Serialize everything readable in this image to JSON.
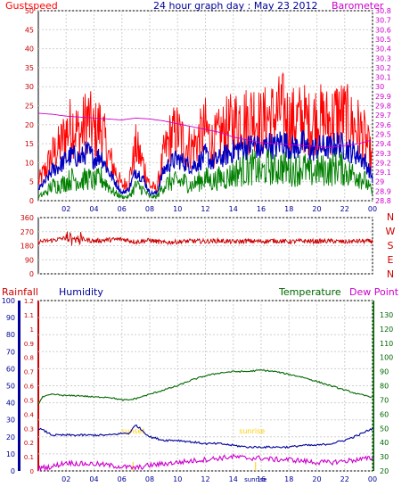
{
  "chart_data": [
    {
      "type": "line",
      "title": "24 hour graph day : May 23 2012",
      "left_axis_label": "Gustspeed",
      "right_axis_label": "Barometer",
      "ylim_left": [
        0,
        50
      ],
      "yticks_left": [
        "0",
        "5",
        "10",
        "15",
        "20",
        "25",
        "30",
        "35",
        "40",
        "45",
        "50"
      ],
      "ylim_right": [
        28.8,
        30.8
      ],
      "yticks_right": [
        "28.8",
        "28.9",
        "29",
        "29.1",
        "29.2",
        "29.3",
        "29.4",
        "29.5",
        "29.6",
        "29.7",
        "29.8",
        "29.9",
        "30",
        "30.1",
        "30.2",
        "30.3",
        "30.4",
        "30.5",
        "30.6",
        "30.7",
        "30.8"
      ],
      "xlim": [
        0,
        24
      ],
      "xticks": [
        "02",
        "04",
        "06",
        "08",
        "10",
        "12",
        "14",
        "16",
        "18",
        "20",
        "22",
        "00"
      ],
      "grid": true,
      "colors": {
        "gust": "#ff0000",
        "avg": "#0000c0",
        "low": "#008000",
        "baro": "#cc00cc"
      },
      "series": [
        {
          "key": "gust",
          "x": [
            0,
            0.5,
            1,
            1.5,
            2,
            2.5,
            3,
            3.5,
            4,
            4.5,
            5,
            5.5,
            6,
            6.5,
            7,
            7.5,
            8,
            8.5,
            9,
            9.5,
            10,
            10.5,
            11,
            11.5,
            12,
            12.5,
            13,
            13.5,
            14,
            14.5,
            15,
            15.5,
            16,
            16.5,
            17,
            17.5,
            18,
            18.5,
            19,
            19.5,
            20,
            20.5,
            21,
            21.5,
            22,
            22.5,
            23,
            23.5,
            24
          ],
          "y": [
            5,
            8,
            12,
            14,
            18,
            20,
            17,
            22,
            18,
            20,
            12,
            8,
            4,
            5,
            14,
            10,
            4,
            3,
            12,
            17,
            18,
            15,
            14,
            16,
            19,
            15,
            17,
            19,
            20,
            22,
            21,
            23,
            20,
            22,
            22,
            24,
            21,
            21,
            22,
            20,
            22,
            21,
            21,
            23,
            22,
            20,
            19,
            16,
            10
          ]
        },
        {
          "key": "avg",
          "x": [
            0,
            0.5,
            1,
            1.5,
            2,
            2.5,
            3,
            3.5,
            4,
            4.5,
            5,
            5.5,
            6,
            6.5,
            7,
            7.5,
            8,
            8.5,
            9,
            9.5,
            10,
            10.5,
            11,
            11.5,
            12,
            12.5,
            13,
            13.5,
            14,
            14.5,
            15,
            15.5,
            16,
            16.5,
            17,
            17.5,
            18,
            18.5,
            19,
            19.5,
            20,
            20.5,
            21,
            21.5,
            22,
            22.5,
            23,
            23.5,
            24
          ],
          "y": [
            3,
            5,
            8,
            9,
            11,
            12,
            11,
            13,
            11,
            12,
            8,
            5,
            2,
            3,
            8,
            6,
            2,
            2,
            8,
            10,
            11,
            10,
            9,
            10,
            12,
            10,
            11,
            12,
            13,
            14,
            14,
            15,
            13,
            15,
            14,
            16,
            14,
            14,
            15,
            13,
            14,
            14,
            14,
            15,
            14,
            13,
            12,
            10,
            6
          ]
        },
        {
          "key": "low",
          "x": [
            0,
            0.5,
            1,
            1.5,
            2,
            2.5,
            3,
            3.5,
            4,
            4.5,
            5,
            5.5,
            6,
            6.5,
            7,
            7.5,
            8,
            8.5,
            9,
            9.5,
            10,
            10.5,
            11,
            11.5,
            12,
            12.5,
            13,
            13.5,
            14,
            14.5,
            15,
            15.5,
            16,
            16.5,
            17,
            17.5,
            18,
            18.5,
            19,
            19.5,
            20,
            20.5,
            21,
            21.5,
            22,
            22.5,
            23,
            23.5,
            24
          ],
          "y": [
            1,
            2,
            4,
            4,
            5,
            6,
            5,
            6,
            5,
            6,
            4,
            2,
            1,
            1,
            4,
            3,
            1,
            1,
            4,
            5,
            5,
            5,
            4,
            5,
            6,
            5,
            6,
            6,
            7,
            8,
            8,
            9,
            7,
            9,
            8,
            9,
            8,
            8,
            9,
            7,
            8,
            8,
            8,
            9,
            8,
            7,
            7,
            5,
            2
          ]
        },
        {
          "key": "baro",
          "axis": "right",
          "x": [
            0,
            1,
            2,
            3,
            4,
            5,
            6,
            6.5,
            7,
            8,
            9,
            10,
            11,
            12,
            13,
            14,
            15,
            16,
            17,
            18,
            19,
            20,
            21,
            22,
            23,
            24
          ],
          "y": [
            29.72,
            29.71,
            29.69,
            29.68,
            29.67,
            29.66,
            29.65,
            29.66,
            29.67,
            29.66,
            29.64,
            29.61,
            29.58,
            29.55,
            29.52,
            29.47,
            29.44,
            29.41,
            29.4,
            29.39,
            29.38,
            29.37,
            29.36,
            29.38,
            29.4,
            29.44
          ]
        }
      ]
    },
    {
      "type": "line",
      "ylim": [
        0,
        360
      ],
      "yticks": [
        "0",
        "90",
        "180",
        "270",
        "360"
      ],
      "compass_labels": [
        "N",
        "W",
        "S",
        "E",
        "N"
      ],
      "xlim": [
        0,
        24
      ],
      "grid": true,
      "colors": {
        "dir": "#cc0000"
      },
      "series": [
        {
          "key": "dir",
          "x": [
            0,
            1,
            2,
            3,
            4,
            5,
            6,
            7,
            8,
            9,
            10,
            11,
            12,
            13,
            14,
            15,
            16,
            17,
            18,
            19,
            20,
            21,
            22,
            23,
            24
          ],
          "y": [
            205,
            215,
            230,
            225,
            210,
            218,
            222,
            205,
            215,
            200,
            205,
            210,
            208,
            212,
            205,
            210,
            208,
            212,
            206,
            210,
            208,
            210,
            205,
            210,
            208
          ]
        }
      ]
    },
    {
      "type": "line",
      "labels": {
        "rainfall": "Rainfall",
        "humidity": "Humidity",
        "temperature": "Temperature",
        "dewpoint": "Dew Point"
      },
      "ylim_humidity": [
        0,
        100
      ],
      "yticks_humidity": [
        "0",
        "10",
        "20",
        "30",
        "40",
        "50",
        "60",
        "70",
        "80",
        "90",
        "100"
      ],
      "ylim_rain": [
        0,
        1.2
      ],
      "yticks_rain": [
        "0",
        "0.1",
        "0.2",
        "0.3",
        "0.4",
        "0.5",
        "0.6",
        "0.7",
        "0.8",
        "0.9",
        "1",
        "1.1",
        "1.2"
      ],
      "ylim_temp": [
        20,
        140
      ],
      "yticks_temp": [
        "20",
        "30",
        "40",
        "50",
        "60",
        "70",
        "80",
        "90",
        "100",
        "110",
        "120",
        "130"
      ],
      "xlim": [
        0,
        24
      ],
      "xticks": [
        "02",
        "04",
        "06",
        "08",
        "10",
        "12",
        "14",
        "16",
        "18",
        "20",
        "22",
        "00"
      ],
      "annotations": {
        "sunset": "sunset",
        "sunrise": "sunrise",
        "sunrise_axis": "sunrise"
      },
      "grid": true,
      "colors": {
        "rain": "#cc0000",
        "humidity": "#000099",
        "temperature": "#006600",
        "dewpoint": "#cc00cc",
        "sun": "#ffcc00"
      },
      "series": [
        {
          "key": "temperature",
          "axis": "temp",
          "x": [
            0,
            0.3,
            1,
            2,
            3,
            4,
            5,
            6,
            6.5,
            7,
            8,
            9,
            10,
            11,
            12,
            13,
            14,
            15,
            16,
            17,
            18,
            19,
            20,
            21,
            22,
            23,
            24
          ],
          "y": [
            67,
            72,
            74,
            73,
            73,
            72,
            72,
            70,
            70,
            71,
            74,
            77,
            80,
            84,
            87,
            89,
            90,
            90,
            91,
            90,
            88,
            86,
            83,
            80,
            77,
            74,
            72
          ]
        },
        {
          "key": "humidity",
          "axis": "humidity",
          "x": [
            0,
            0.3,
            1,
            2,
            3,
            4,
            5,
            6,
            6.5,
            7,
            8,
            9,
            10,
            11,
            12,
            13,
            14,
            15,
            16,
            17,
            18,
            19,
            20,
            21,
            22,
            23,
            24
          ],
          "y": [
            25,
            24,
            21,
            21,
            21,
            21,
            21,
            22,
            22,
            27,
            20,
            18,
            18,
            17,
            16,
            16,
            15,
            14,
            14,
            14,
            14,
            15,
            15,
            16,
            18,
            21,
            25
          ]
        },
        {
          "key": "dewpoint",
          "axis": "temp",
          "x": [
            0,
            1,
            2,
            3,
            4,
            5,
            6,
            7,
            8,
            9,
            10,
            11,
            12,
            13,
            14,
            15,
            16,
            17,
            18,
            19,
            20,
            21,
            22,
            23,
            24
          ],
          "y": [
            22,
            23,
            26,
            25,
            25,
            24,
            23,
            22,
            24,
            25,
            26,
            27,
            28,
            29,
            30,
            29,
            29,
            28,
            28,
            27,
            26,
            26,
            27,
            28,
            29
          ]
        }
      ],
      "sunset_hour": 6.8,
      "sunrise_hour": 15.6
    }
  ]
}
